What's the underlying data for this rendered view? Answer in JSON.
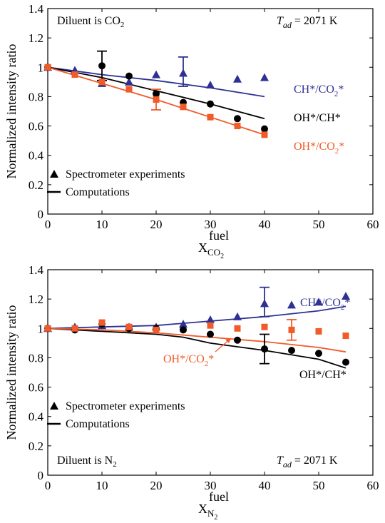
{
  "colors": {
    "ch_co2": "#2e3192",
    "oh_ch": "#000000",
    "oh_co2": "#f15a29"
  },
  "chart_data": [
    {
      "type": "scatter",
      "ylabel": "Normalized intensity ratio",
      "xlabel_base": "X",
      "xlabel_sup": "fuel",
      "xlabel_sub": "CO",
      "xlabel_subsub": "2",
      "xlim": [
        0,
        60
      ],
      "ylim": [
        0,
        1.4
      ],
      "x_ticks": [
        "0",
        "10",
        "20",
        "30",
        "40",
        "50",
        "60"
      ],
      "y_ticks": [
        "0",
        "0.2",
        "0.4",
        "0.6",
        "0.8",
        "1",
        "1.2",
        "1.4"
      ],
      "diluent_text": "Diluent is CO",
      "diluent_sub": "2",
      "tad_t": "T",
      "tad_sub": "ad",
      "tad_value": " = 2071 K",
      "legend": {
        "experiments": "Spectrometer experiments",
        "computations": "Computations"
      },
      "labels": {
        "ch_co2": {
          "a": "CH*/CO",
          "sub": "2",
          "b": "*"
        },
        "oh_ch": {
          "a": "OH*/CH*",
          "sub": "",
          "b": ""
        },
        "oh_co2": {
          "a": "OH*/CO",
          "sub": "2",
          "b": "*"
        }
      },
      "series": [
        {
          "name": "CH*/CO2*",
          "color_key": "ch_co2",
          "marker": "triangle",
          "points": [
            [
              0,
              1.0
            ],
            [
              5,
              0.98
            ],
            [
              10,
              0.89
            ],
            [
              15,
              0.9
            ],
            [
              20,
              0.95
            ],
            [
              25,
              0.96
            ],
            [
              30,
              0.88
            ],
            [
              35,
              0.92
            ],
            [
              40,
              0.93
            ]
          ],
          "errorbars": [
            {
              "x": 25,
              "low": 0.87,
              "high": 1.07
            }
          ],
          "line": [
            [
              0,
              1.0
            ],
            [
              10,
              0.95
            ],
            [
              20,
              0.91
            ],
            [
              30,
              0.86
            ],
            [
              40,
              0.8
            ]
          ]
        },
        {
          "name": "OH*/CH*",
          "color_key": "oh_ch",
          "marker": "circle",
          "points": [
            [
              0,
              1.0
            ],
            [
              10,
              1.01
            ],
            [
              15,
              0.94
            ],
            [
              20,
              0.82
            ],
            [
              25,
              0.76
            ],
            [
              30,
              0.75
            ],
            [
              35,
              0.65
            ],
            [
              40,
              0.58
            ]
          ],
          "errorbars": [
            {
              "x": 10,
              "low": 0.91,
              "high": 1.11
            }
          ],
          "line": [
            [
              0,
              1.0
            ],
            [
              10,
              0.93
            ],
            [
              20,
              0.84
            ],
            [
              30,
              0.75
            ],
            [
              40,
              0.65
            ]
          ]
        },
        {
          "name": "OH*/CO2*",
          "color_key": "oh_co2",
          "marker": "square",
          "points": [
            [
              0,
              1.0
            ],
            [
              5,
              0.95
            ],
            [
              10,
              0.9
            ],
            [
              15,
              0.85
            ],
            [
              20,
              0.78
            ],
            [
              25,
              0.73
            ],
            [
              30,
              0.66
            ],
            [
              35,
              0.6
            ],
            [
              40,
              0.54
            ]
          ],
          "errorbars": [
            {
              "x": 20,
              "low": 0.71,
              "high": 0.85
            }
          ],
          "line": [
            [
              0,
              1.0
            ],
            [
              10,
              0.89
            ],
            [
              20,
              0.78
            ],
            [
              30,
              0.66
            ],
            [
              40,
              0.54
            ]
          ]
        }
      ]
    },
    {
      "type": "scatter",
      "ylabel": "Normalized intensity ratio",
      "xlabel_base": "X",
      "xlabel_sup": "fuel",
      "xlabel_sub": "N",
      "xlabel_subsub": "2",
      "xlim": [
        0,
        60
      ],
      "ylim": [
        0,
        1.4
      ],
      "x_ticks": [
        "0",
        "10",
        "20",
        "30",
        "40",
        "50",
        "60"
      ],
      "y_ticks": [
        "0",
        "0.2",
        "0.4",
        "0.6",
        "0.8",
        "1",
        "1.2",
        "1.4"
      ],
      "diluent_text": "Diluent is N",
      "diluent_sub": "2",
      "tad_t": "T",
      "tad_sub": "ad",
      "tad_value": " = 2071 K",
      "legend": {
        "experiments": "Spectrometer experiments",
        "computations": "Computations"
      },
      "labels": {
        "ch_co2": {
          "a": "CH*/CO",
          "sub": "2",
          "b": "*"
        },
        "oh_ch": {
          "a": "OH*/CH*",
          "sub": "",
          "b": ""
        },
        "oh_co2": {
          "a": "OH*/CO",
          "sub": "2",
          "b": "*"
        }
      },
      "series": [
        {
          "name": "CH*/CO2*",
          "color_key": "ch_co2",
          "marker": "triangle",
          "points": [
            [
              0,
              1.0
            ],
            [
              5,
              1.01
            ],
            [
              10,
              1.02
            ],
            [
              15,
              1.01
            ],
            [
              20,
              1.01
            ],
            [
              25,
              1.03
            ],
            [
              30,
              1.06
            ],
            [
              35,
              1.08
            ],
            [
              40,
              1.17
            ],
            [
              45,
              1.16
            ],
            [
              50,
              1.18
            ],
            [
              55,
              1.22
            ]
          ],
          "errorbars": [
            {
              "x": 40,
              "low": 1.08,
              "high": 1.28
            }
          ],
          "line": [
            [
              0,
              1.0
            ],
            [
              10,
              1.01
            ],
            [
              20,
              1.02
            ],
            [
              30,
              1.05
            ],
            [
              40,
              1.08
            ],
            [
              50,
              1.12
            ],
            [
              55,
              1.15
            ]
          ]
        },
        {
          "name": "OH*/CH*",
          "color_key": "oh_ch",
          "marker": "circle",
          "points": [
            [
              0,
              1.0
            ],
            [
              5,
              0.99
            ],
            [
              10,
              1.03
            ],
            [
              15,
              1.0
            ],
            [
              20,
              1.0
            ],
            [
              25,
              0.99
            ],
            [
              30,
              0.96
            ],
            [
              35,
              0.92
            ],
            [
              40,
              0.86
            ],
            [
              45,
              0.85
            ],
            [
              50,
              0.83
            ],
            [
              55,
              0.77
            ]
          ],
          "errorbars": [
            {
              "x": 40,
              "low": 0.76,
              "high": 0.96
            }
          ],
          "line": [
            [
              0,
              1.0
            ],
            [
              10,
              0.98
            ],
            [
              20,
              0.96
            ],
            [
              25,
              0.94
            ],
            [
              30,
              0.9
            ],
            [
              40,
              0.85
            ],
            [
              50,
              0.79
            ],
            [
              55,
              0.73
            ]
          ]
        },
        {
          "name": "OH*/CO2*",
          "color_key": "oh_co2",
          "marker": "square",
          "points": [
            [
              0,
              1.0
            ],
            [
              5,
              1.0
            ],
            [
              10,
              1.04
            ],
            [
              15,
              1.01
            ],
            [
              20,
              0.99
            ],
            [
              30,
              1.02
            ],
            [
              35,
              1.0
            ],
            [
              40,
              1.01
            ],
            [
              45,
              0.99
            ],
            [
              50,
              0.98
            ],
            [
              55,
              0.95
            ]
          ],
          "errorbars": [
            {
              "x": 45,
              "low": 0.92,
              "high": 1.06
            }
          ],
          "line": [
            [
              0,
              1.0
            ],
            [
              10,
              0.99
            ],
            [
              20,
              0.97
            ],
            [
              30,
              0.94
            ],
            [
              40,
              0.91
            ],
            [
              50,
              0.87
            ],
            [
              55,
              0.84
            ]
          ]
        }
      ]
    }
  ]
}
